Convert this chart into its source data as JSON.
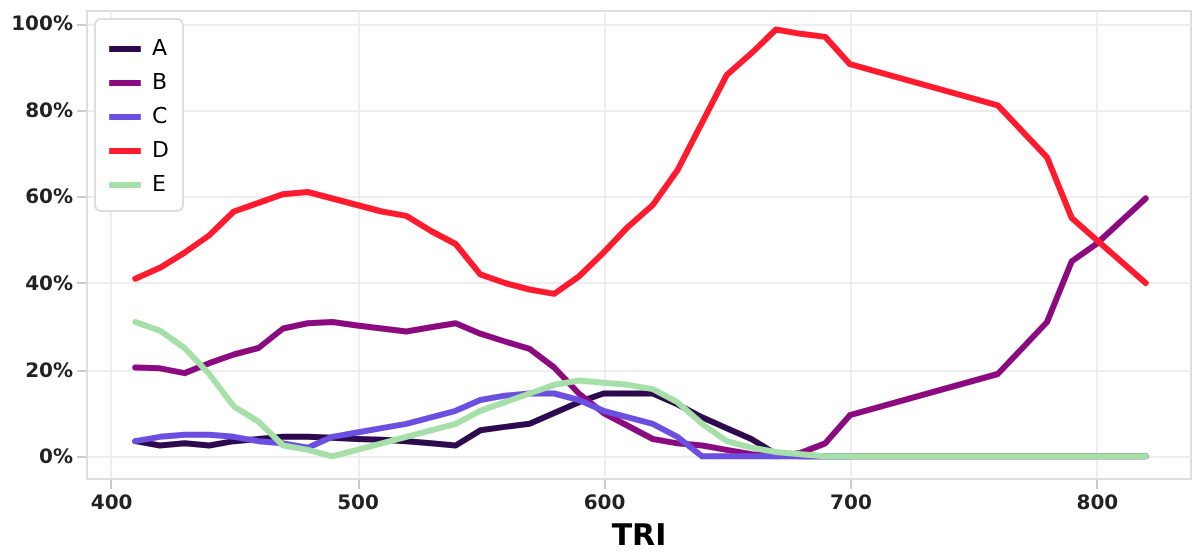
{
  "chart_data": {
    "type": "line",
    "xlabel": "TRI",
    "x": [
      410,
      420,
      430,
      440,
      450,
      460,
      470,
      480,
      490,
      500,
      510,
      520,
      530,
      540,
      550,
      560,
      570,
      580,
      590,
      600,
      610,
      620,
      630,
      640,
      650,
      660,
      670,
      680,
      690,
      700,
      760,
      780,
      790,
      800,
      820
    ],
    "series": [
      {
        "name": "A",
        "color": "#2d0a4e",
        "values": [
          3.5,
          2.5,
          3,
          2.5,
          3.5,
          4,
          4.5,
          4.5,
          4.3,
          4,
          3.8,
          3.5,
          3,
          2.5,
          6,
          6.8,
          7.5,
          10,
          12.5,
          14.5,
          14.5,
          14.5,
          12,
          9,
          6.5,
          4,
          0.5,
          0,
          0,
          0,
          0,
          0,
          0,
          0,
          0
        ]
      },
      {
        "name": "B",
        "color": "#8b0a7f",
        "values": [
          20.5,
          20.3,
          19.2,
          21.5,
          23.5,
          25,
          29.5,
          30.7,
          31,
          30.2,
          29.5,
          28.8,
          29.8,
          30.7,
          28.3,
          26.5,
          24.8,
          20.5,
          14.5,
          10,
          7,
          4,
          3,
          2.5,
          1.5,
          0.5,
          0,
          0.8,
          3,
          9.5,
          19,
          31,
          45,
          49,
          59.5
        ]
      },
      {
        "name": "C",
        "color": "#6a4fe0",
        "values": [
          3.5,
          4.5,
          5,
          5,
          4.5,
          3.5,
          3,
          2,
          4.5,
          5.5,
          6.5,
          7.5,
          9,
          10.5,
          13,
          14,
          14.5,
          14.5,
          13,
          10.5,
          9,
          7.5,
          4.5,
          0,
          0,
          0,
          0,
          0,
          0,
          0,
          null,
          null,
          null,
          null,
          null
        ]
      },
      {
        "name": "D",
        "color": "#ff1a2e",
        "values": [
          41,
          43.5,
          47,
          51,
          56.5,
          58.5,
          60.5,
          61,
          59.5,
          58,
          56.5,
          55.5,
          52,
          49,
          42,
          40,
          38.5,
          37.5,
          41.5,
          47,
          53,
          58,
          66,
          77,
          88,
          93,
          98.5,
          97.5,
          96.8,
          90.5,
          81,
          69,
          55,
          50,
          40
        ]
      },
      {
        "name": "E",
        "color": "#a6e0a8",
        "values": [
          31,
          29,
          25,
          19,
          11.5,
          8,
          2.5,
          1.5,
          0,
          1.5,
          3,
          4.5,
          6,
          7.5,
          10.5,
          12.5,
          14.5,
          16.5,
          17.5,
          17,
          16.5,
          15.5,
          12.5,
          7.5,
          3.5,
          2,
          1,
          0.5,
          0,
          0,
          0,
          0,
          0,
          0,
          0
        ]
      }
    ],
    "xlim": [
      390,
      838
    ],
    "xticks": [
      400,
      500,
      600,
      700,
      800
    ],
    "ylim": [
      -5,
      103
    ],
    "yticks": [
      {
        "value": 0,
        "label": "0%"
      },
      {
        "value": 20,
        "label": "20%"
      },
      {
        "value": 40,
        "label": "40%"
      },
      {
        "value": 60,
        "label": "60%"
      },
      {
        "value": 80,
        "label": "80%"
      },
      {
        "value": 100,
        "label": "100%"
      }
    ],
    "grid": true,
    "legend": "top left",
    "line_style": "solid",
    "marker": "none"
  }
}
